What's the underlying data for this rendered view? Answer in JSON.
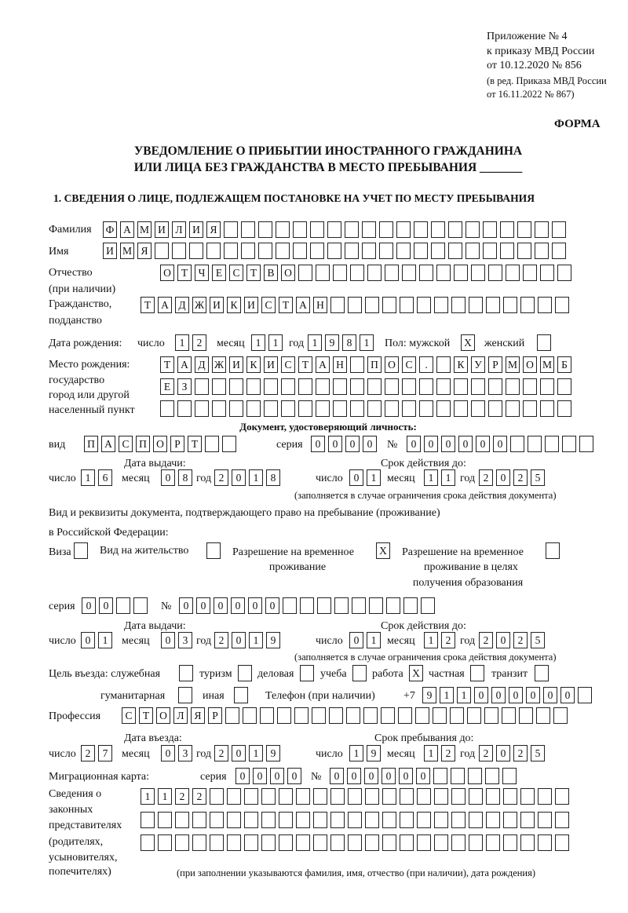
{
  "header": {
    "appendix": [
      "Приложение № 4",
      "к приказу МВД России",
      "от 10.12.2020 № 856"
    ],
    "edition": [
      "(в ред. Приказа МВД России",
      "от 16.11.2022 № 867)"
    ],
    "form_label": "ФОРМА",
    "title_line1": "УВЕДОМЛЕНИЕ О ПРИБЫТИИ ИНОСТРАННОГО ГРАЖДАНИНА",
    "title_line2": "ИЛИ ЛИЦА БЕЗ ГРАЖДАНСТВА В МЕСТО ПРЕБЫВАНИЯ _______",
    "section1": "1. СВЕДЕНИЯ О ЛИЦЕ, ПОДЛЕЖАЩЕМ ПОСТАНОВКЕ НА УЧЕТ ПО МЕСТУ ПРЕБЫВАНИЯ"
  },
  "labels": {
    "surname": "Фамилия",
    "name": "Имя",
    "patronymic": "Отчество",
    "patronymic_note": "(при наличии)",
    "citizenship": "Гражданство,",
    "citizenship2": "подданство",
    "birth_date": "Дата рождения:",
    "day": "число",
    "month": "месяц",
    "year": "год",
    "sex": "Пол: мужской",
    "female": "женский",
    "birthplace": [
      "Место рождения:",
      "государство",
      "город или другой",
      "населенный пункт"
    ],
    "id_doc": "Документ, удостоверяющий личность:",
    "kind": "вид",
    "series": "серия",
    "number": "№",
    "issue_date": "Дата выдачи:",
    "valid_until": "Срок действия до:",
    "validity_note": "(заполняется в случае ограничения срока действия документа)",
    "right_doc1": "Вид и реквизиты документа, подтверждающего право на пребывание (проживание)",
    "right_doc2": "в Российской Федерации:",
    "visa": "Виза",
    "residence": "Вид на жительство",
    "trp": [
      "Разрешение на временное",
      "проживание"
    ],
    "trp_edu": [
      "Разрешение на временное",
      "проживание в целях",
      "получения образования"
    ],
    "purpose": "Цель въезда: служебная",
    "tourism": "туризм",
    "business": "деловая",
    "study": "учеба",
    "work": "работа",
    "private": "частная",
    "transit": "транзит",
    "humanitarian": "гуманитарная",
    "other": "иная",
    "phone": "Телефон (при наличии)",
    "phone_prefix": "+7",
    "profession": "Профессия",
    "entry_date": "Дата въезда:",
    "stay_until": "Срок пребывания до:",
    "migration_card": "Миграционная карта:",
    "reps": [
      "Сведения о",
      "законных",
      "представителях",
      "(родителях,",
      "усыновителях,",
      "попечителях)"
    ],
    "reps_note": "(при заполнении указываются фамилия, имя, отчество (при наличии), дата рождения)"
  },
  "fields": {
    "surname": [
      "Ф",
      "А",
      "М",
      "И",
      "Л",
      "И",
      "Я",
      "",
      "",
      "",
      "",
      "",
      "",
      "",
      "",
      "",
      "",
      "",
      "",
      "",
      "",
      "",
      "",
      "",
      "",
      "",
      ""
    ],
    "name": [
      "И",
      "М",
      "Я",
      "",
      "",
      "",
      "",
      "",
      "",
      "",
      "",
      "",
      "",
      "",
      "",
      "",
      "",
      "",
      "",
      "",
      "",
      "",
      "",
      "",
      "",
      "",
      ""
    ],
    "patronymic": [
      "О",
      "Т",
      "Ч",
      "Е",
      "С",
      "Т",
      "В",
      "О",
      "",
      "",
      "",
      "",
      "",
      "",
      "",
      "",
      "",
      "",
      "",
      "",
      "",
      "",
      "",
      ""
    ],
    "citizenship": [
      "Т",
      "А",
      "Д",
      "Ж",
      "И",
      "К",
      "И",
      "С",
      "Т",
      "А",
      "Н",
      "",
      "",
      "",
      "",
      "",
      "",
      "",
      "",
      "",
      "",
      "",
      "",
      "",
      ""
    ],
    "birth_day": [
      "1",
      "2"
    ],
    "birth_month": [
      "1",
      "1"
    ],
    "birth_year": [
      "1",
      "9",
      "8",
      "1"
    ],
    "sex_male": "X",
    "sex_female": "",
    "birthplace1": [
      "Т",
      "А",
      "Д",
      "Ж",
      "И",
      "К",
      "И",
      "С",
      "Т",
      "А",
      "Н",
      "",
      "П",
      "О",
      "С",
      ".",
      "",
      "К",
      "У",
      "Р",
      "М",
      "О",
      "М",
      "Б"
    ],
    "birthplace2": [
      "Е",
      "З",
      "",
      "",
      "",
      "",
      "",
      "",
      "",
      "",
      "",
      "",
      "",
      "",
      "",
      "",
      "",
      "",
      "",
      "",
      "",
      "",
      "",
      ""
    ],
    "birthplace3": [
      "",
      "",
      "",
      "",
      "",
      "",
      "",
      "",
      "",
      "",
      "",
      "",
      "",
      "",
      "",
      "",
      "",
      "",
      "",
      "",
      "",
      "",
      "",
      ""
    ],
    "id_kind": [
      "П",
      "А",
      "С",
      "П",
      "О",
      "Р",
      "Т",
      "",
      ""
    ],
    "id_series": [
      "0",
      "0",
      "0",
      "0"
    ],
    "id_number": [
      "0",
      "0",
      "0",
      "0",
      "0",
      "0",
      "",
      "",
      "",
      "",
      ""
    ],
    "id_issue": {
      "day": [
        "1",
        "6"
      ],
      "month": [
        "0",
        "8"
      ],
      "year": [
        "2",
        "0",
        "1",
        "8"
      ]
    },
    "id_valid": {
      "day": [
        "0",
        "1"
      ],
      "month": [
        "1",
        "1"
      ],
      "year": [
        "2",
        "0",
        "2",
        "5"
      ]
    },
    "visa": "",
    "residence": "",
    "trp": "X",
    "trp_edu": "",
    "rd_series": [
      "0",
      "0",
      "",
      ""
    ],
    "rd_number": [
      "0",
      "0",
      "0",
      "0",
      "0",
      "0",
      "",
      "",
      "",
      "",
      "",
      "",
      "",
      "",
      ""
    ],
    "rd_issue": {
      "day": [
        "0",
        "1"
      ],
      "month": [
        "0",
        "3"
      ],
      "year": [
        "2",
        "0",
        "1",
        "9"
      ]
    },
    "rd_valid": {
      "day": [
        "0",
        "1"
      ],
      "month": [
        "1",
        "2"
      ],
      "year": [
        "2",
        "0",
        "2",
        "5"
      ]
    },
    "purpose": {
      "official": "",
      "tourism": "",
      "business": "",
      "study": "",
      "work": "X",
      "private": "",
      "transit": "",
      "humanitarian": "",
      "other": ""
    },
    "phone": [
      "9",
      "1",
      "1",
      "0",
      "0",
      "0",
      "0",
      "0",
      "0",
      ""
    ],
    "profession": [
      "С",
      "Т",
      "О",
      "Л",
      "Я",
      "Р",
      "",
      "",
      "",
      "",
      "",
      "",
      "",
      "",
      "",
      "",
      "",
      "",
      "",
      "",
      "",
      "",
      "",
      "",
      "",
      ""
    ],
    "entry": {
      "day": [
        "2",
        "7"
      ],
      "month": [
        "0",
        "3"
      ],
      "year": [
        "2",
        "0",
        "1",
        "9"
      ]
    },
    "stay": {
      "day": [
        "1",
        "9"
      ],
      "month": [
        "1",
        "2"
      ],
      "year": [
        "2",
        "0",
        "2",
        "5"
      ]
    },
    "mc_series": [
      "0",
      "0",
      "0",
      "0"
    ],
    "mc_number": [
      "0",
      "0",
      "0",
      "0",
      "0",
      "0",
      "",
      "",
      "",
      "",
      ""
    ],
    "reps1": [
      "1",
      "1",
      "2",
      "2",
      "",
      "",
      "",
      "",
      "",
      "",
      "",
      "",
      "",
      "",
      "",
      "",
      "",
      "",
      "",
      "",
      "",
      "",
      "",
      "",
      ""
    ],
    "reps2": [
      "",
      "",
      "",
      "",
      "",
      "",
      "",
      "",
      "",
      "",
      "",
      "",
      "",
      "",
      "",
      "",
      "",
      "",
      "",
      "",
      "",
      "",
      "",
      "",
      ""
    ],
    "reps3": [
      "",
      "",
      "",
      "",
      "",
      "",
      "",
      "",
      "",
      "",
      "",
      "",
      "",
      "",
      "",
      "",
      "",
      "",
      "",
      "",
      "",
      "",
      "",
      "",
      ""
    ]
  }
}
